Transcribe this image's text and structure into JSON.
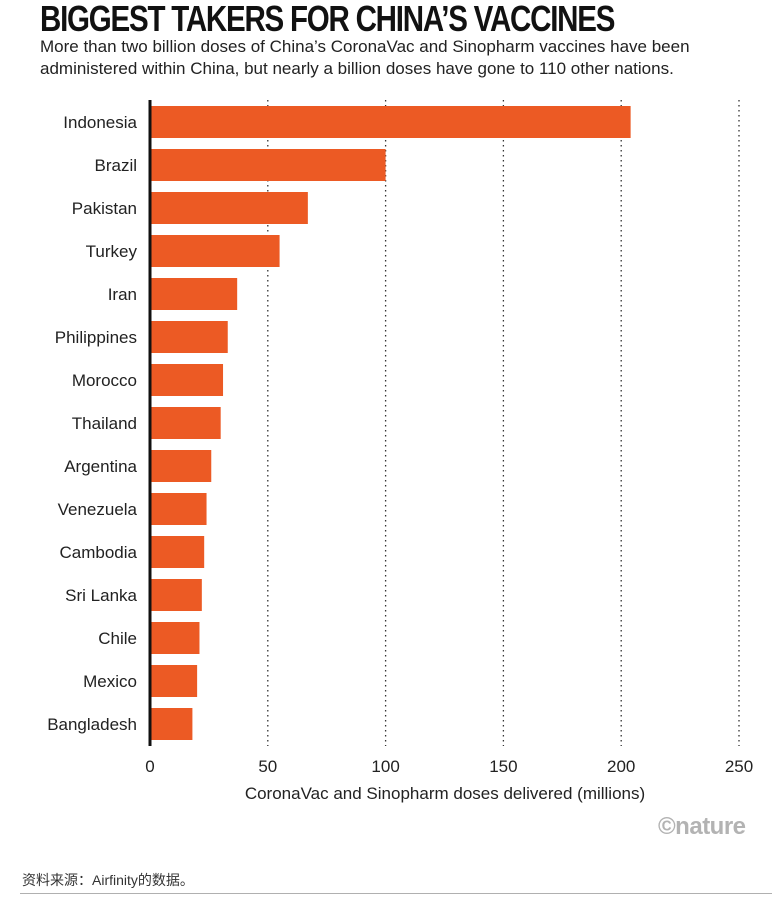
{
  "title": "BIGGEST TAKERS FOR CHINA’S VACCINES",
  "subtitle": "More than two billion doses of China’s CoronaVac and Sinopharm vaccines have been administered within China, but nearly a billion doses have gone to 110 other nations.",
  "logo": "©nature",
  "source": "资料来源：Airfinity的数据。",
  "colors": {
    "bar": "#ec5a24",
    "axis": "#111111",
    "grid": "#333333",
    "text": "#222222"
  },
  "chart_data": {
    "type": "bar",
    "orientation": "horizontal",
    "categories": [
      "Indonesia",
      "Brazil",
      "Pakistan",
      "Turkey",
      "Iran",
      "Philippines",
      "Morocco",
      "Thailand",
      "Argentina",
      "Venezuela",
      "Cambodia",
      "Sri Lanka",
      "Chile",
      "Mexico",
      "Bangladesh"
    ],
    "values": [
      204,
      100,
      67,
      55,
      37,
      33,
      31,
      30,
      26,
      24,
      23,
      22,
      21,
      20,
      18
    ],
    "xlabel": "CoronaVac and Sinopharm doses delivered (millions)",
    "ylabel": "",
    "xlim": [
      0,
      250
    ],
    "xticks": [
      0,
      50,
      100,
      150,
      200,
      250
    ],
    "grid": "vertical dotted"
  }
}
